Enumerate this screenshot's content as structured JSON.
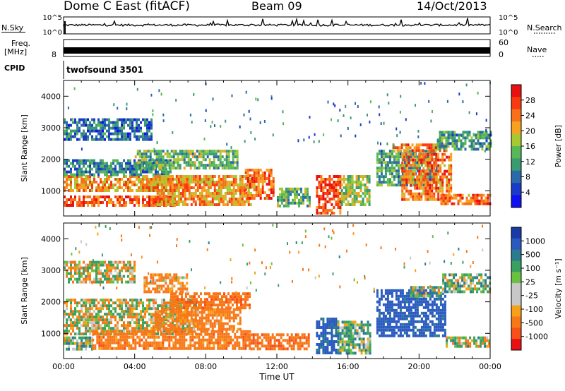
{
  "header": {
    "station": "Dome C East (fitACF)",
    "beam": "Beam 09",
    "date": "14/Oct/2013"
  },
  "strips": {
    "nsky_label": "N.Sky",
    "nsky_top": "10^5",
    "nsky_bottom": "10^0",
    "nsearch_label": "N.Search",
    "nsearch_right_top": "10^5",
    "nsearch_right_bottom": "10^0",
    "freq_label_1": "Freq.",
    "freq_label_2": "[MHz]",
    "freq_bottom": "8",
    "freq_right_top": "60",
    "freq_right_bottom": "0",
    "nave_label": "Nave",
    "cpid_label": "CPID",
    "cpid_value": "twofsound 3501"
  },
  "colorbars": {
    "power": {
      "label": "Power [dB]",
      "ticks": [
        "28",
        "24",
        "20",
        "16",
        "12",
        "8",
        "4"
      ],
      "colors": [
        "#e81010",
        "#f83a10",
        "#f87018",
        "#f8a020",
        "#a8c830",
        "#58b858",
        "#3a9a70",
        "#2a6aa8",
        "#1a3ac8",
        "#1010f0"
      ]
    },
    "velocity": {
      "label": "Velocity [m s⁻¹]",
      "ticks": [
        "1000",
        "500",
        "100",
        "25",
        "-25",
        "-100",
        "-500",
        "-1000"
      ],
      "colors": [
        "#1a3aa8",
        "#2a5ac0",
        "#2a7a90",
        "#3aa060",
        "#6ac040",
        "#c8c8c8",
        "#c8c8c8",
        "#f8a018",
        "#f87818",
        "#f85018",
        "#e81010"
      ]
    }
  },
  "chart_data": [
    {
      "type": "heatmap",
      "title": "Power",
      "ylabel": "Slant Range [km]",
      "xlabel": "",
      "ylim": [
        200,
        4500
      ],
      "xlim": [
        0,
        24
      ],
      "yticks": [
        "1000",
        "2000",
        "3000",
        "4000"
      ],
      "xticks": [],
      "zlabel": "Power [dB]",
      "zlim": [
        0,
        32
      ],
      "regions": [
        {
          "t": [
            0,
            6.2
          ],
          "r": [
            550,
            850
          ],
          "v": 26
        },
        {
          "t": [
            0,
            7
          ],
          "r": [
            1050,
            1500
          ],
          "v": 22
        },
        {
          "t": [
            0,
            6
          ],
          "r": [
            1500,
            2000
          ],
          "v": 10
        },
        {
          "t": [
            5,
            10.5
          ],
          "r": [
            600,
            1500
          ],
          "v": 22
        },
        {
          "t": [
            4,
            9.8
          ],
          "r": [
            1700,
            2300
          ],
          "v": 14
        },
        {
          "t": [
            10.2,
            11.8
          ],
          "r": [
            800,
            1700
          ],
          "v": 25
        },
        {
          "t": [
            12,
            13.8
          ],
          "r": [
            500,
            1100
          ],
          "v": 14
        },
        {
          "t": [
            14.2,
            15.6
          ],
          "r": [
            300,
            1500
          ],
          "v": 27
        },
        {
          "t": [
            15.6,
            17.2
          ],
          "r": [
            600,
            1500
          ],
          "v": 16
        },
        {
          "t": [
            17.6,
            21
          ],
          "r": [
            1200,
            2300
          ],
          "v": 12
        },
        {
          "t": [
            19,
            21.8
          ],
          "r": [
            700,
            2200
          ],
          "v": 24
        },
        {
          "t": [
            18.5,
            21.5
          ],
          "r": [
            2250,
            2500
          ],
          "v": 24
        },
        {
          "t": [
            21.2,
            24
          ],
          "r": [
            550,
            900
          ],
          "v": 25
        },
        {
          "t": [
            21,
            24
          ],
          "r": [
            2300,
            2900
          ],
          "v": 12
        },
        {
          "t": [
            0,
            5
          ],
          "r": [
            2600,
            3300
          ],
          "v": 8
        }
      ]
    },
    {
      "type": "heatmap",
      "title": "Velocity",
      "ylabel": "Slant Range [km]",
      "xlabel": "Time UT",
      "ylim": [
        200,
        4500
      ],
      "xlim": [
        0,
        24
      ],
      "yticks": [
        "1000",
        "2000",
        "3000",
        "4000"
      ],
      "xticks": [
        "00:00",
        "04:00",
        "08:00",
        "12:00",
        "16:00",
        "20:00",
        "00:00"
      ],
      "zlabel": "Velocity [m s⁻¹]",
      "zlim": [
        -1000,
        1000
      ],
      "regions": [
        {
          "t": [
            0,
            1.6
          ],
          "r": [
            500,
            900
          ],
          "v": 80
        },
        {
          "t": [
            0,
            7.5
          ],
          "r": [
            1000,
            2100
          ],
          "v": 0
        },
        {
          "t": [
            1.6,
            10.5
          ],
          "r": [
            550,
            1100
          ],
          "v": -300
        },
        {
          "t": [
            5,
            10
          ],
          "r": [
            1100,
            1800
          ],
          "v": -250
        },
        {
          "t": [
            6,
            10.5
          ],
          "r": [
            1800,
            2300
          ],
          "v": -350
        },
        {
          "t": [
            4.5,
            7
          ],
          "r": [
            2300,
            2900
          ],
          "v": -200
        },
        {
          "t": [
            10.4,
            13.8
          ],
          "r": [
            500,
            1000
          ],
          "v": -400
        },
        {
          "t": [
            14.2,
            15.4
          ],
          "r": [
            400,
            1500
          ],
          "v": 600
        },
        {
          "t": [
            15.4,
            17.3
          ],
          "r": [
            400,
            1400
          ],
          "v": 150
        },
        {
          "t": [
            17.6,
            21.5
          ],
          "r": [
            900,
            2400
          ],
          "v": 700
        },
        {
          "t": [
            19.5,
            21.2
          ],
          "r": [
            2200,
            2500
          ],
          "v": 120
        },
        {
          "t": [
            21.5,
            24
          ],
          "r": [
            550,
            900
          ],
          "v": 60
        },
        {
          "t": [
            21.3,
            24
          ],
          "r": [
            2300,
            2900
          ],
          "v": 120
        },
        {
          "t": [
            0,
            4
          ],
          "r": [
            2600,
            3300
          ],
          "v": 0
        }
      ]
    }
  ]
}
